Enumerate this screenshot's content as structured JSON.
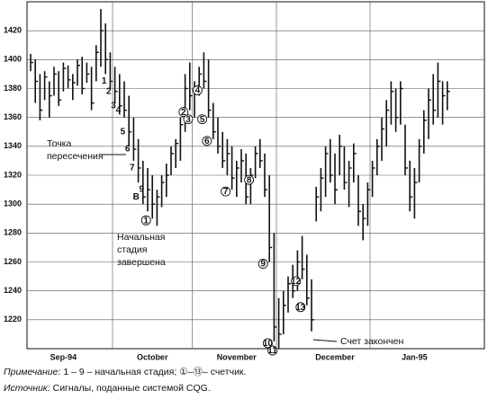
{
  "chart_data": {
    "type": "ohlc",
    "ylim": [
      1200,
      1440
    ],
    "yticks": [
      1220,
      1240,
      1260,
      1280,
      1300,
      1320,
      1340,
      1360,
      1380,
      1400,
      1420
    ],
    "grid": true,
    "color": "#111111",
    "month_labels": [
      {
        "index": 7,
        "label": "Sep-94"
      },
      {
        "index": 26,
        "label": "October"
      },
      {
        "index": 44,
        "label": "November"
      },
      {
        "index": 65,
        "label": "December"
      },
      {
        "index": 82,
        "label": "Jan-95"
      }
    ],
    "month_starts": [
      18,
      35,
      53,
      73
    ],
    "high": [
      1404,
      1400,
      1390,
      1392,
      1385,
      1395,
      1392,
      1398,
      1396,
      1390,
      1400,
      1402,
      1398,
      1395,
      1410,
      1435,
      1425,
      1405,
      1395,
      1390,
      1385,
      1375,
      1360,
      1345,
      1330,
      1325,
      1320,
      1310,
      1320,
      1328,
      1340,
      1345,
      1360,
      1390,
      1398,
      1385,
      1395,
      1405,
      1400,
      1370,
      1360,
      1350,
      1345,
      1340,
      1330,
      1338,
      1335,
      1325,
      1340,
      1345,
      1335,
      1320,
      1280,
      1235,
      1240,
      1250,
      1258,
      1268,
      1278,
      1265,
      1248,
      1312,
      1325,
      1340,
      1345,
      1335,
      1348,
      1340,
      1330,
      1342,
      1320,
      1300,
      1315,
      1330,
      1345,
      1360,
      1372,
      1385,
      1380,
      1385,
      1355,
      1330,
      1325,
      1345,
      1365,
      1380,
      1390,
      1398,
      1385,
      1385
    ],
    "low": [
      1392,
      1370,
      1358,
      1372,
      1360,
      1375,
      1368,
      1378,
      1380,
      1372,
      1382,
      1376,
      1384,
      1365,
      1385,
      1395,
      1390,
      1380,
      1370,
      1362,
      1360,
      1340,
      1330,
      1315,
      1300,
      1295,
      1290,
      1285,
      1298,
      1305,
      1320,
      1325,
      1330,
      1350,
      1365,
      1360,
      1375,
      1380,
      1360,
      1345,
      1335,
      1325,
      1320,
      1310,
      1305,
      1315,
      1300,
      1300,
      1318,
      1325,
      1305,
      1260,
      1205,
      1200,
      1210,
      1225,
      1235,
      1240,
      1248,
      1230,
      1212,
      1288,
      1295,
      1305,
      1315,
      1300,
      1320,
      1310,
      1298,
      1315,
      1285,
      1275,
      1285,
      1305,
      1320,
      1330,
      1340,
      1355,
      1350,
      1355,
      1320,
      1295,
      1290,
      1315,
      1335,
      1345,
      1355,
      1360,
      1355,
      1365
    ],
    "close": [
      1398,
      1385,
      1365,
      1388,
      1375,
      1390,
      1372,
      1394,
      1386,
      1384,
      1396,
      1380,
      1390,
      1370,
      1405,
      1420,
      1400,
      1385,
      1378,
      1368,
      1365,
      1350,
      1338,
      1325,
      1305,
      1310,
      1300,
      1305,
      1315,
      1320,
      1335,
      1342,
      1355,
      1380,
      1375,
      1380,
      1390,
      1385,
      1365,
      1350,
      1340,
      1330,
      1335,
      1318,
      1325,
      1330,
      1305,
      1320,
      1335,
      1330,
      1310,
      1270,
      1215,
      1210,
      1230,
      1245,
      1240,
      1260,
      1255,
      1235,
      1220,
      1305,
      1318,
      1335,
      1320,
      1310,
      1340,
      1315,
      1325,
      1335,
      1295,
      1290,
      1310,
      1325,
      1340,
      1352,
      1365,
      1378,
      1360,
      1380,
      1325,
      1305,
      1315,
      1340,
      1358,
      1372,
      1365,
      1385,
      1375,
      1378
    ],
    "setup": [
      {
        "label": "1",
        "bar": 17
      },
      {
        "label": "2",
        "bar": 18
      },
      {
        "label": "3",
        "bar": 19
      },
      {
        "label": "4",
        "bar": 20
      },
      {
        "label": "5",
        "bar": 21
      },
      {
        "label": "6",
        "bar": 22
      },
      {
        "label": "7",
        "bar": 23
      },
      {
        "label": "B",
        "bar": 24
      },
      {
        "label": "9",
        "bar": 25
      }
    ],
    "countdown": [
      {
        "label": "1",
        "bar": 26
      },
      {
        "label": "2",
        "bar": 34
      },
      {
        "label": "3",
        "bar": 35
      },
      {
        "label": "4",
        "bar": 37
      },
      {
        "label": "5",
        "bar": 38
      },
      {
        "label": "6",
        "bar": 39
      },
      {
        "label": "7",
        "bar": 43
      },
      {
        "label": "8",
        "bar": 48
      },
      {
        "label": "9",
        "bar": 51
      },
      {
        "label": "10",
        "bar": 52
      },
      {
        "label": "11",
        "bar": 53
      },
      {
        "label": "12",
        "bar": 58
      },
      {
        "label": "13",
        "bar": 59
      }
    ],
    "annotation_cross": [
      "Точка",
      "пересечения"
    ],
    "annotation_setup_done": [
      "Начальная",
      "стадия",
      "завершена"
    ],
    "annotation_count_done": "Счет закончен",
    "note_label": "Примечание:",
    "note": "1 – 9 – начальная стадия; ①–⑬– счетчик.",
    "source_label": "Источник:",
    "source": "Сигналы, поданные системой CQG."
  }
}
